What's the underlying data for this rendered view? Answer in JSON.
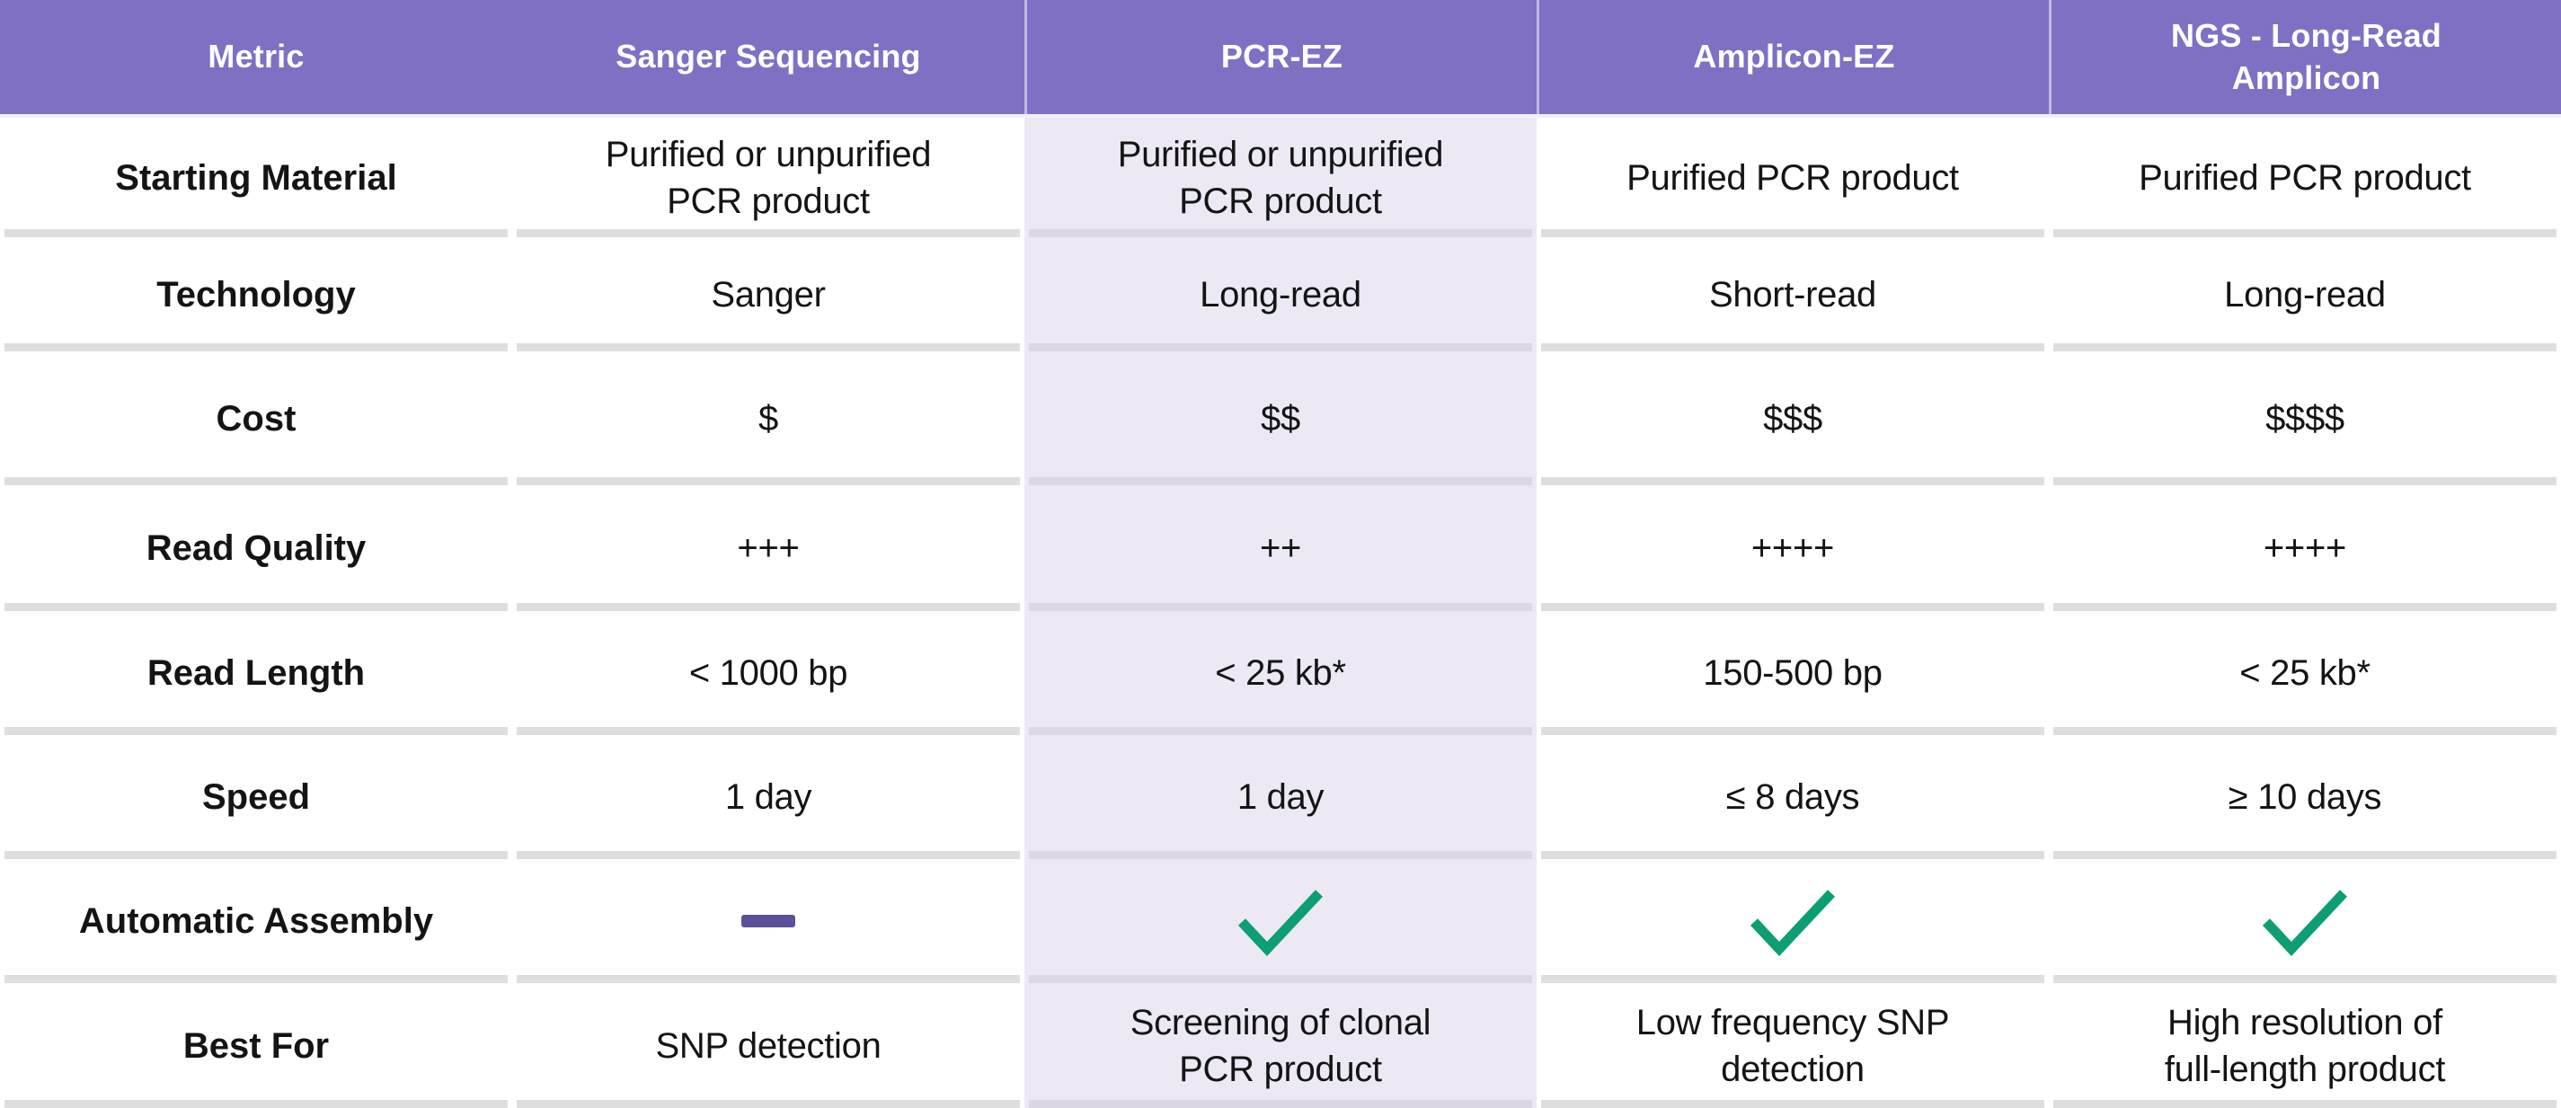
{
  "chart_data": {
    "type": "table",
    "columns": [
      {
        "label": "Metric"
      },
      {
        "label": "Sanger Sequencing"
      },
      {
        "label": "PCR-EZ",
        "highlighted": true
      },
      {
        "label": "Amplicon-EZ"
      },
      {
        "label": "NGS - Long-Read\nAmplicon"
      }
    ],
    "rows": [
      {
        "metric": "Starting Material",
        "cells": [
          {
            "text": "Purified or unpurified\nPCR product"
          },
          {
            "text": "Purified or unpurified\nPCR product"
          },
          {
            "text": "Purified PCR product"
          },
          {
            "text": "Purified PCR product"
          }
        ]
      },
      {
        "metric": "Technology",
        "cells": [
          {
            "text": "Sanger"
          },
          {
            "text": "Long-read"
          },
          {
            "text": "Short-read"
          },
          {
            "text": "Long-read"
          }
        ]
      },
      {
        "metric": "Cost",
        "cells": [
          {
            "text": "$"
          },
          {
            "text": "$$"
          },
          {
            "text": "$$$"
          },
          {
            "text": "$$$$"
          }
        ]
      },
      {
        "metric": "Read Quality",
        "cells": [
          {
            "text": "+++"
          },
          {
            "text": "++"
          },
          {
            "text": "++++"
          },
          {
            "text": "++++"
          }
        ]
      },
      {
        "metric": "Read Length",
        "cells": [
          {
            "text": "< 1000 bp"
          },
          {
            "text": "< 25 kb*"
          },
          {
            "text": "150-500 bp"
          },
          {
            "text": "< 25 kb*"
          }
        ]
      },
      {
        "metric": "Speed",
        "cells": [
          {
            "text": "1 day"
          },
          {
            "text": "1 day"
          },
          {
            "text": "≤ 8 days"
          },
          {
            "text": "≥ 10 days"
          }
        ]
      },
      {
        "metric": "Automatic Assembly",
        "cells": [
          {
            "icon": "dash"
          },
          {
            "icon": "check"
          },
          {
            "icon": "check"
          },
          {
            "icon": "check"
          }
        ]
      },
      {
        "metric": "Best For",
        "cells": [
          {
            "text": "SNP detection"
          },
          {
            "text": "Screening of clonal\nPCR product"
          },
          {
            "text": "Low frequency SNP\ndetection"
          },
          {
            "text": "High resolution of\nfull-length product"
          }
        ]
      }
    ]
  },
  "colors": {
    "header_bg": "#8070C4",
    "header_text": "#FFFFFF",
    "highlight_column_bg": "#ECE9F5",
    "divider": "#DEDEDE",
    "body_text": "#141414",
    "check_green": "#0D9E73",
    "dash_purple": "#5D509A"
  }
}
